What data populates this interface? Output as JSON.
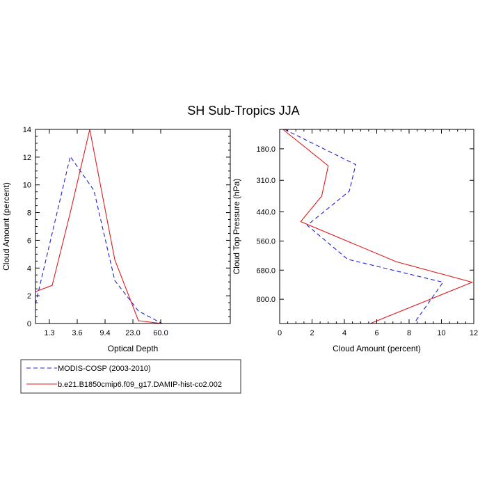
{
  "title": "SH Sub-Tropics JJA",
  "colors": {
    "obs": "#1f1fd6",
    "model": "#e01b1b",
    "axis": "#000000"
  },
  "legend": {
    "entries": [
      {
        "label": "MODIS-COSP (2003-2010)",
        "style": "dashed",
        "color": "#1f1fd6"
      },
      {
        "label": "b.e21.B1850cmip6.f09_g17.DAMIP-hist-co2.002",
        "style": "solid",
        "color": "#e01b1b"
      }
    ]
  },
  "chart_data": [
    {
      "type": "line",
      "title": "SH Sub-Tropics JJA",
      "xlabel": "Optical Depth",
      "ylabel": "Cloud Amount (percent)",
      "xlim": [
        0,
        7
      ],
      "ylim": [
        0,
        14
      ],
      "xticks": [
        {
          "value": 0.5,
          "label": "1.3"
        },
        {
          "value": 1.5,
          "label": "3.6"
        },
        {
          "value": 2.5,
          "label": "9.4"
        },
        {
          "value": 3.5,
          "label": "23.0"
        },
        {
          "value": 4.5,
          "label": "60.0"
        }
      ],
      "yticks": [
        0,
        2,
        4,
        6,
        8,
        10,
        12,
        14
      ],
      "series": [
        {
          "name": "MODIS-COSP (2003-2010)",
          "style": "dashed",
          "color": "#1f1fd6",
          "x": [
            0.0,
            1.25,
            2.1,
            2.85,
            3.7,
            4.55
          ],
          "y": [
            1.4,
            12.05,
            9.6,
            3.1,
            0.9,
            0.0
          ]
        },
        {
          "name": "b.e21.B1850cmip6.f09_g17.DAMIP-hist-co2.002",
          "style": "solid",
          "color": "#e01b1b",
          "x": [
            0.0,
            0.6,
            1.25,
            1.95,
            2.85,
            3.7,
            4.55
          ],
          "y": [
            2.3,
            2.75,
            8.0,
            14.0,
            4.6,
            0.2,
            0.0
          ]
        }
      ]
    },
    {
      "type": "line",
      "xlabel": "Cloud Amount (percent)",
      "ylabel": "Cloud Top Pressure (hPa)",
      "xlim": [
        0,
        12
      ],
      "ylim": [
        100,
        900
      ],
      "y_inverted": true,
      "xticks": [
        0,
        2,
        4,
        6,
        8,
        10,
        12
      ],
      "yticks": [
        {
          "value": 180,
          "label": "180.0"
        },
        {
          "value": 310,
          "label": "310.0"
        },
        {
          "value": 440,
          "label": "440.0"
        },
        {
          "value": 560,
          "label": "560.0"
        },
        {
          "value": 680,
          "label": "680.0"
        },
        {
          "value": 800,
          "label": "800.0"
        }
      ],
      "series": [
        {
          "name": "MODIS-COSP (2003-2010)",
          "style": "dashed",
          "color": "#1f1fd6",
          "x": [
            0.3,
            4.7,
            4.3,
            1.7,
            4.2,
            10.1,
            8.3
          ],
          "y": [
            100,
            245,
            355,
            495,
            635,
            730,
            900
          ]
        },
        {
          "name": "b.e21.B1850cmip6.f09_g17.DAMIP-hist-co2.002",
          "style": "solid",
          "color": "#e01b1b",
          "x": [
            0.2,
            3.0,
            2.6,
            1.3,
            7.2,
            11.9,
            5.6
          ],
          "y": [
            100,
            250,
            375,
            480,
            645,
            730,
            900
          ]
        }
      ]
    }
  ]
}
